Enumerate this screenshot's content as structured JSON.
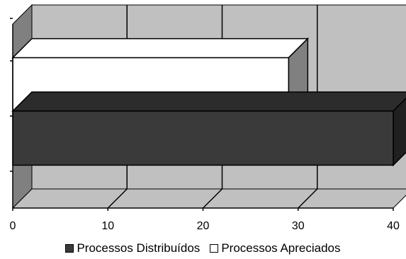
{
  "chart_data": {
    "type": "bar",
    "orientation": "horizontal",
    "three_d": true,
    "series": [
      {
        "name": "Processos Distribuídos",
        "value": 40,
        "color": "#3a3a3a"
      },
      {
        "name": "Processos Apreciados",
        "value": 29,
        "color": "#ffffff"
      }
    ],
    "xlim": [
      0,
      40
    ],
    "x_ticks": [
      "0",
      "10",
      "20",
      "30",
      "40"
    ],
    "grid": true,
    "legend_placement": "bottom",
    "colors": {
      "wall": "#c0c0c0",
      "floor": "#c0c0c0",
      "side_wall": "#808080"
    }
  }
}
